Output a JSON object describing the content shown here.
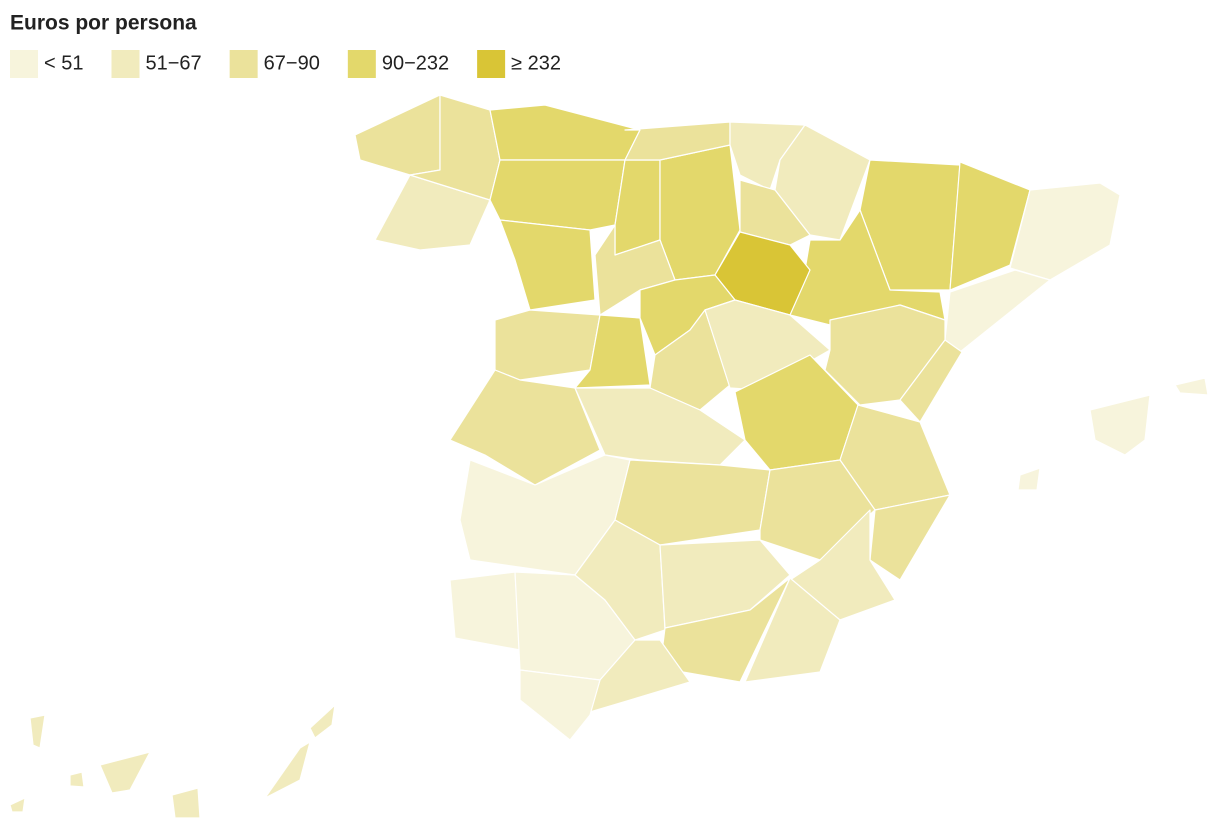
{
  "legend": {
    "title": "Euros por persona",
    "items": [
      {
        "label": "< 51",
        "color": "#f7f4dc"
      },
      {
        "label": "51−67",
        "color": "#f1ebbd"
      },
      {
        "label": "67−90",
        "color": "#ebe29b"
      },
      {
        "label": "90−232",
        "color": "#e3d86b"
      },
      {
        "label": "≥ 232",
        "color": "#d9c536"
      }
    ]
  }
}
